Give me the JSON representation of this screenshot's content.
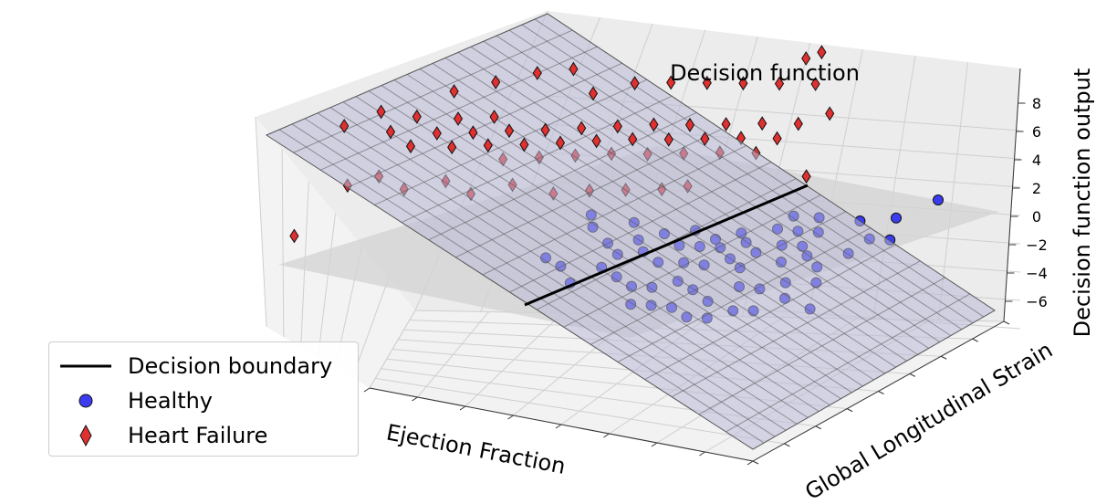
{
  "chart_data": {
    "type": "scatter",
    "subtype": "3d-surface-scatter",
    "title": "Decision function",
    "xlabel": "Ejection Fraction",
    "ylabel": "Global Longitudinal Strain",
    "zlabel": "Decision function output",
    "zticks": [
      -6,
      -4,
      -2,
      0,
      2,
      4,
      6,
      8
    ],
    "grid": true,
    "legend_placement": "bottom-left",
    "legend": [
      {
        "key": "boundary",
        "label": "Decision boundary"
      },
      {
        "key": "healthy",
        "label": "Healthy"
      },
      {
        "key": "hf",
        "label": "Heart Failure"
      }
    ],
    "colors": {
      "healthy": "#3b3bf0",
      "heart_failure": "#e03030",
      "surface": "#b9b9d9",
      "zero_plane": "#d3d3d3",
      "boundary": "#000000"
    },
    "series": [
      {
        "name": "Healthy",
        "key": "healthy",
        "marker": "circle",
        "points": [
          [
            0.53,
            0.67,
            -2.6
          ],
          [
            0.56,
            0.62,
            -2.4
          ],
          [
            0.6,
            0.6,
            -3.2
          ],
          [
            0.63,
            0.58,
            -3.6
          ],
          [
            0.63,
            0.64,
            -2.1
          ],
          [
            0.66,
            0.6,
            -2.6
          ],
          [
            0.68,
            0.58,
            -3.1
          ],
          [
            0.7,
            0.62,
            -2.3
          ],
          [
            0.72,
            0.56,
            -3.4
          ],
          [
            0.74,
            0.6,
            -2.7
          ],
          [
            0.75,
            0.64,
            -2.2
          ],
          [
            0.77,
            0.56,
            -3.2
          ],
          [
            0.78,
            0.6,
            -2.6
          ],
          [
            0.8,
            0.62,
            -2.3
          ],
          [
            0.81,
            0.56,
            -3.2
          ],
          [
            0.82,
            0.6,
            -2.5
          ],
          [
            0.84,
            0.64,
            -2.0
          ],
          [
            0.85,
            0.58,
            -2.9
          ],
          [
            0.86,
            0.62,
            -2.3
          ],
          [
            0.88,
            0.56,
            -3.1
          ],
          [
            0.89,
            0.6,
            -2.6
          ],
          [
            0.9,
            0.66,
            -1.8
          ],
          [
            0.91,
            0.7,
            -1.5
          ],
          [
            0.93,
            0.62,
            -2.2
          ],
          [
            0.94,
            0.66,
            -1.8
          ],
          [
            0.95,
            0.58,
            -2.7
          ],
          [
            0.96,
            0.7,
            -1.4
          ],
          [
            0.97,
            0.62,
            -2.1
          ],
          [
            0.98,
            0.66,
            -1.7
          ],
          [
            0.99,
            0.6,
            -2.4
          ],
          [
            0.9,
            0.52,
            -3.8
          ],
          [
            0.86,
            0.48,
            -4.4
          ],
          [
            0.82,
            0.5,
            -4.0
          ],
          [
            0.78,
            0.52,
            -3.9
          ],
          [
            0.74,
            0.5,
            -4.2
          ],
          [
            0.7,
            0.5,
            -4.3
          ],
          [
            0.66,
            0.52,
            -4.1
          ],
          [
            0.62,
            0.54,
            -3.9
          ],
          [
            0.58,
            0.5,
            -4.6
          ],
          [
            0.54,
            0.54,
            -4.2
          ],
          [
            0.5,
            0.56,
            -4.1
          ],
          [
            0.92,
            0.46,
            -4.5
          ],
          [
            0.94,
            0.52,
            -3.8
          ],
          [
            0.96,
            0.46,
            -4.3
          ],
          [
            0.98,
            0.54,
            -3.5
          ],
          [
            1.0,
            0.5,
            -3.9
          ],
          [
            1.02,
            0.58,
            -2.8
          ],
          [
            1.04,
            0.54,
            -3.2
          ],
          [
            1.06,
            0.62,
            -2.3
          ],
          [
            1.08,
            0.66,
            -1.8
          ],
          [
            1.04,
            0.7,
            -1.3
          ],
          [
            1.1,
            0.72,
            -1.2
          ],
          [
            1.12,
            0.66,
            -1.7
          ],
          [
            1.06,
            0.48,
            -4.1
          ],
          [
            0.88,
            0.44,
            -4.9
          ],
          [
            0.84,
            0.44,
            -5.0
          ],
          [
            0.8,
            0.46,
            -4.8
          ],
          [
            0.76,
            0.46,
            -4.8
          ],
          [
            0.72,
            0.46,
            -4.9
          ],
          [
            1.15,
            0.78,
            -0.7
          ]
        ]
      },
      {
        "name": "Heart Failure",
        "key": "hf",
        "marker": "diamond",
        "points": [
          [
            0.02,
            0.72,
            1.8
          ],
          [
            0.06,
            0.78,
            1.9
          ],
          [
            0.1,
            0.74,
            1.2
          ],
          [
            0.13,
            0.78,
            1.8
          ],
          [
            0.15,
            0.72,
            0.6
          ],
          [
            0.18,
            0.76,
            1.0
          ],
          [
            0.2,
            0.8,
            1.5
          ],
          [
            0.22,
            0.74,
            0.4
          ],
          [
            0.24,
            0.78,
            0.9
          ],
          [
            0.26,
            0.82,
            1.5
          ],
          [
            0.28,
            0.76,
            0.4
          ],
          [
            0.3,
            0.8,
            0.9
          ],
          [
            0.32,
            0.74,
            -0.2
          ],
          [
            0.34,
            0.78,
            0.3
          ],
          [
            0.36,
            0.82,
            0.8
          ],
          [
            0.38,
            0.76,
            -0.2
          ],
          [
            0.4,
            0.8,
            0.3
          ],
          [
            0.42,
            0.84,
            0.8
          ],
          [
            0.44,
            0.78,
            -0.2
          ],
          [
            0.46,
            0.82,
            0.3
          ],
          [
            0.48,
            0.86,
            0.8
          ],
          [
            0.5,
            0.8,
            -0.2
          ],
          [
            0.52,
            0.84,
            0.3
          ],
          [
            0.54,
            0.88,
            0.8
          ],
          [
            0.56,
            0.82,
            -0.4
          ],
          [
            0.58,
            0.86,
            0.1
          ],
          [
            0.6,
            0.9,
            0.6
          ],
          [
            0.62,
            0.84,
            -0.5
          ],
          [
            0.64,
            0.88,
            0.0
          ],
          [
            0.66,
            0.92,
            0.5
          ],
          [
            0.68,
            0.86,
            -0.6
          ],
          [
            0.7,
            0.9,
            -0.1
          ],
          [
            0.72,
            0.94,
            0.4
          ],
          [
            0.74,
            0.88,
            -0.8
          ],
          [
            0.76,
            0.92,
            -0.3
          ],
          [
            0.78,
            0.96,
            0.2
          ],
          [
            0.4,
            0.92,
            2.0
          ],
          [
            0.46,
            0.96,
            2.3
          ],
          [
            0.52,
            0.98,
            2.2
          ],
          [
            0.58,
            1.0,
            2.0
          ],
          [
            0.64,
            1.02,
            1.8
          ],
          [
            0.7,
            1.04,
            1.6
          ],
          [
            0.76,
            1.06,
            1.4
          ],
          [
            0.82,
            1.0,
            0.4
          ],
          [
            0.16,
            0.86,
            2.4
          ],
          [
            0.22,
            0.9,
            2.6
          ],
          [
            0.28,
            0.94,
            2.8
          ],
          [
            0.34,
            0.96,
            3.0
          ],
          [
            0.08,
            0.62,
            -1.0
          ],
          [
            0.12,
            0.66,
            -0.9
          ],
          [
            0.18,
            0.64,
            -1.3
          ],
          [
            0.24,
            0.68,
            -1.2
          ],
          [
            0.3,
            0.66,
            -1.6
          ],
          [
            0.36,
            0.7,
            -1.4
          ],
          [
            0.44,
            0.7,
            -1.8
          ],
          [
            0.5,
            0.72,
            -1.7
          ],
          [
            0.56,
            0.74,
            -1.8
          ],
          [
            0.62,
            0.76,
            -1.9
          ],
          [
            0.66,
            0.78,
            -1.9
          ],
          [
            0.86,
            0.84,
            -1.4
          ],
          [
            0.04,
            0.5,
            -3.0
          ],
          [
            0.72,
            1.1,
            2.6
          ],
          [
            0.74,
            1.12,
            2.8
          ]
        ]
      }
    ]
  }
}
